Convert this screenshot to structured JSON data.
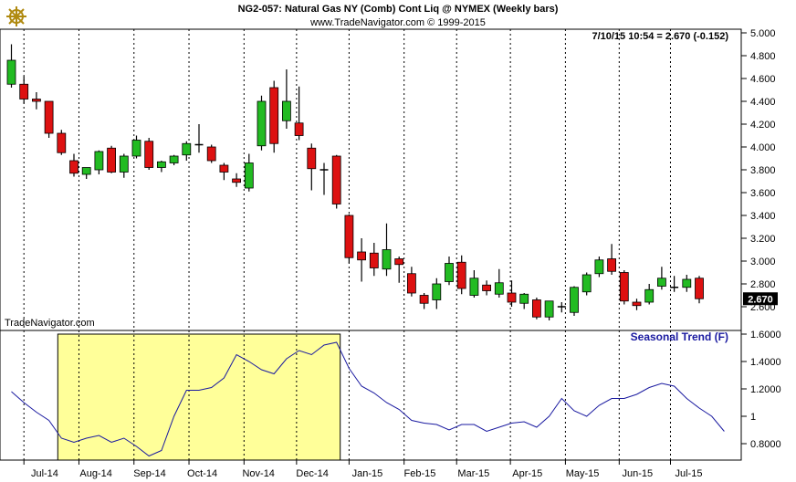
{
  "header": {
    "line1": "NG2-057:  Natural Gas NY (Comb) Cont Liq @ NYMEX  (Weekly bars)",
    "line2": "www.TradeNavigator.com © 1999-2015",
    "quote": "7/10/15 10:54 = 2.670 (-0.152)"
  },
  "watermark": "TradeNavigator.com",
  "last_value_label": "2.670",
  "logo_icon": "ship-wheel-icon",
  "colors": {
    "up": "#22bb22",
    "down": "#dd1111",
    "seasonal": "#1a1aa0",
    "highlight": "#ffff99"
  },
  "chart_data": [
    {
      "type": "candlestick",
      "title": "NG2-057:  Natural Gas NY (Comb) Cont Liq @ NYMEX  (Weekly bars)",
      "y_ticks": [
        "5.000",
        "4.800",
        "4.600",
        "4.400",
        "4.200",
        "4.000",
        "3.800",
        "3.600",
        "3.400",
        "3.200",
        "3.000",
        "2.800",
        "2.600"
      ],
      "ylim": [
        2.55,
        5.02
      ],
      "last": 2.67,
      "candles": [
        {
          "o": 4.55,
          "h": 4.9,
          "l": 4.52,
          "c": 4.76
        },
        {
          "o": 4.55,
          "h": 4.62,
          "l": 4.38,
          "c": 4.42
        },
        {
          "o": 4.42,
          "h": 4.48,
          "l": 4.33,
          "c": 4.4
        },
        {
          "o": 4.4,
          "h": 4.4,
          "l": 4.08,
          "c": 4.12
        },
        {
          "o": 4.12,
          "h": 4.15,
          "l": 3.93,
          "c": 3.95
        },
        {
          "o": 3.88,
          "h": 3.94,
          "l": 3.74,
          "c": 3.77
        },
        {
          "o": 3.76,
          "h": 3.82,
          "l": 3.72,
          "c": 3.82
        },
        {
          "o": 3.8,
          "h": 3.97,
          "l": 3.76,
          "c": 3.96
        },
        {
          "o": 3.99,
          "h": 4.01,
          "l": 3.77,
          "c": 3.78
        },
        {
          "o": 3.78,
          "h": 3.94,
          "l": 3.73,
          "c": 3.92
        },
        {
          "o": 3.92,
          "h": 4.1,
          "l": 3.9,
          "c": 4.06
        },
        {
          "o": 4.05,
          "h": 4.08,
          "l": 3.8,
          "c": 3.82
        },
        {
          "o": 3.82,
          "h": 3.88,
          "l": 3.78,
          "c": 3.87
        },
        {
          "o": 3.86,
          "h": 3.93,
          "l": 3.84,
          "c": 3.92
        },
        {
          "o": 3.93,
          "h": 4.05,
          "l": 3.88,
          "c": 4.03
        },
        {
          "o": 4.02,
          "h": 4.2,
          "l": 3.95,
          "c": 4.02
        },
        {
          "o": 4.0,
          "h": 4.02,
          "l": 3.86,
          "c": 3.88
        },
        {
          "o": 3.84,
          "h": 3.86,
          "l": 3.71,
          "c": 3.78
        },
        {
          "o": 3.72,
          "h": 3.77,
          "l": 3.65,
          "c": 3.69
        },
        {
          "o": 3.64,
          "h": 3.94,
          "l": 3.61,
          "c": 3.86
        },
        {
          "o": 4.01,
          "h": 4.45,
          "l": 3.97,
          "c": 4.4
        },
        {
          "o": 4.52,
          "h": 4.58,
          "l": 3.95,
          "c": 4.03
        },
        {
          "o": 4.23,
          "h": 4.68,
          "l": 4.16,
          "c": 4.4
        },
        {
          "o": 4.21,
          "h": 4.53,
          "l": 4.06,
          "c": 4.1
        },
        {
          "o": 3.99,
          "h": 4.03,
          "l": 3.62,
          "c": 3.81
        },
        {
          "o": 3.8,
          "h": 3.86,
          "l": 3.58,
          "c": 3.79
        },
        {
          "o": 3.92,
          "h": 3.93,
          "l": 3.46,
          "c": 3.5
        },
        {
          "o": 3.4,
          "h": 3.41,
          "l": 2.98,
          "c": 3.03
        },
        {
          "o": 3.08,
          "h": 3.2,
          "l": 2.82,
          "c": 3.01
        },
        {
          "o": 3.07,
          "h": 3.16,
          "l": 2.87,
          "c": 2.94
        },
        {
          "o": 2.93,
          "h": 3.33,
          "l": 2.87,
          "c": 3.1
        },
        {
          "o": 3.02,
          "h": 3.04,
          "l": 2.81,
          "c": 2.97
        },
        {
          "o": 2.89,
          "h": 2.95,
          "l": 2.69,
          "c": 2.72
        },
        {
          "o": 2.7,
          "h": 2.72,
          "l": 2.58,
          "c": 2.63
        },
        {
          "o": 2.66,
          "h": 2.85,
          "l": 2.58,
          "c": 2.8
        },
        {
          "o": 2.82,
          "h": 3.04,
          "l": 2.79,
          "c": 2.98
        },
        {
          "o": 2.99,
          "h": 3.05,
          "l": 2.71,
          "c": 2.76
        },
        {
          "o": 2.7,
          "h": 2.92,
          "l": 2.68,
          "c": 2.85
        },
        {
          "o": 2.79,
          "h": 2.83,
          "l": 2.7,
          "c": 2.74
        },
        {
          "o": 2.71,
          "h": 2.93,
          "l": 2.68,
          "c": 2.81
        },
        {
          "o": 2.72,
          "h": 2.83,
          "l": 2.6,
          "c": 2.64
        },
        {
          "o": 2.63,
          "h": 2.72,
          "l": 2.58,
          "c": 2.71
        },
        {
          "o": 2.66,
          "h": 2.68,
          "l": 2.49,
          "c": 2.51
        },
        {
          "o": 2.51,
          "h": 2.65,
          "l": 2.48,
          "c": 2.65
        },
        {
          "o": 2.6,
          "h": 2.64,
          "l": 2.55,
          "c": 2.59
        },
        {
          "o": 2.55,
          "h": 2.78,
          "l": 2.52,
          "c": 2.77
        },
        {
          "o": 2.73,
          "h": 2.9,
          "l": 2.7,
          "c": 2.88
        },
        {
          "o": 2.89,
          "h": 3.04,
          "l": 2.86,
          "c": 3.01
        },
        {
          "o": 3.02,
          "h": 3.15,
          "l": 2.88,
          "c": 2.91
        },
        {
          "o": 2.9,
          "h": 2.92,
          "l": 2.62,
          "c": 2.65
        },
        {
          "o": 2.64,
          "h": 2.67,
          "l": 2.57,
          "c": 2.61
        },
        {
          "o": 2.64,
          "h": 2.8,
          "l": 2.62,
          "c": 2.75
        },
        {
          "o": 2.78,
          "h": 2.95,
          "l": 2.75,
          "c": 2.85
        },
        {
          "o": 2.77,
          "h": 2.87,
          "l": 2.73,
          "c": 2.77
        },
        {
          "o": 2.77,
          "h": 2.88,
          "l": 2.73,
          "c": 2.84
        },
        {
          "o": 2.85,
          "h": 2.87,
          "l": 2.63,
          "c": 2.67
        }
      ]
    },
    {
      "type": "line",
      "series": [
        {
          "name": "Seasonal Trend (F)",
          "values": [
            1.18,
            1.1,
            1.03,
            0.97,
            0.84,
            0.81,
            0.84,
            0.86,
            0.81,
            0.84,
            0.78,
            0.71,
            0.75,
            1.0,
            1.19,
            1.19,
            1.21,
            1.28,
            1.45,
            1.4,
            1.34,
            1.31,
            1.42,
            1.48,
            1.45,
            1.52,
            1.54,
            1.35,
            1.22,
            1.17,
            1.1,
            1.05,
            0.97,
            0.95,
            0.94,
            0.9,
            0.94,
            0.94,
            0.89,
            0.92,
            0.95,
            0.96,
            0.92,
            1.0,
            1.13,
            1.04,
            1.0,
            1.08,
            1.13,
            1.13,
            1.16,
            1.21,
            1.24,
            1.22,
            1.13,
            1.06,
            1.0,
            0.89
          ]
        }
      ],
      "y_ticks": [
        "1.6000",
        "1.4000",
        "1.2000",
        "1",
        "0.8000"
      ],
      "ylim": [
        0.64,
        1.66
      ],
      "highlight_range": [
        4,
        26
      ]
    }
  ],
  "x_axis": {
    "labels": [
      "Jul-14",
      "Aug-14",
      "Sep-14",
      "Oct-14",
      "Nov-14",
      "Dec-14",
      "Jan-15",
      "Feb-15",
      "Mar-15",
      "Apr-15",
      "May-15",
      "Jun-15",
      "Jul-15"
    ],
    "label_bar_index": [
      1.2,
      5.3,
      9.6,
      13.8,
      18.3,
      22.6,
      27.0,
      31.2,
      35.5,
      39.8,
      44.2,
      48.6,
      52.7
    ],
    "grid_bar_index": [
      1.0,
      5.4,
      9.8,
      14.2,
      18.6,
      22.8,
      27.0,
      31.4,
      35.6,
      39.9,
      44.3,
      48.6,
      52.7
    ]
  }
}
